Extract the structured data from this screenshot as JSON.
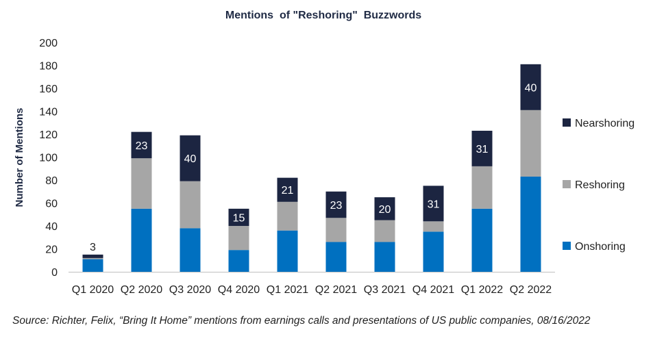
{
  "chart_data": {
    "type": "bar",
    "stacked": true,
    "title": "Mentions  of \"Reshoring\"  Buzzwords",
    "ylabel": "Number of Mentions",
    "xlabel": "",
    "ylim": [
      0,
      200
    ],
    "yticks": [
      0,
      20,
      40,
      60,
      80,
      100,
      120,
      140,
      160,
      180,
      200
    ],
    "grid": false,
    "legend_position": "right",
    "categories": [
      "Q1 2020",
      "Q2 2020",
      "Q3 2020",
      "Q4 2020",
      "Q1 2021",
      "Q2 2021",
      "Q3 2021",
      "Q4 2021",
      "Q1 2022",
      "Q2 2022"
    ],
    "series": [
      {
        "name": "Onshoring",
        "color": "#0070C0",
        "values": [
          11,
          55,
          38,
          19,
          36,
          26,
          26,
          35,
          55,
          83
        ]
      },
      {
        "name": "Reshoring",
        "color": "#A6A6A6",
        "values": [
          1,
          44,
          41,
          21,
          25,
          21,
          19,
          9,
          37,
          58
        ]
      },
      {
        "name": "Nearshoring",
        "color": "#1C2541",
        "values": [
          3,
          23,
          40,
          15,
          21,
          23,
          20,
          31,
          31,
          40
        ]
      }
    ],
    "data_labels_series": "Nearshoring",
    "legend_order": [
      "Nearshoring",
      "Reshoring",
      "Onshoring"
    ]
  },
  "source": "Source: Richter, Felix, “Bring It Home” mentions from earnings calls and presentations of US public companies, 08/16/2022"
}
